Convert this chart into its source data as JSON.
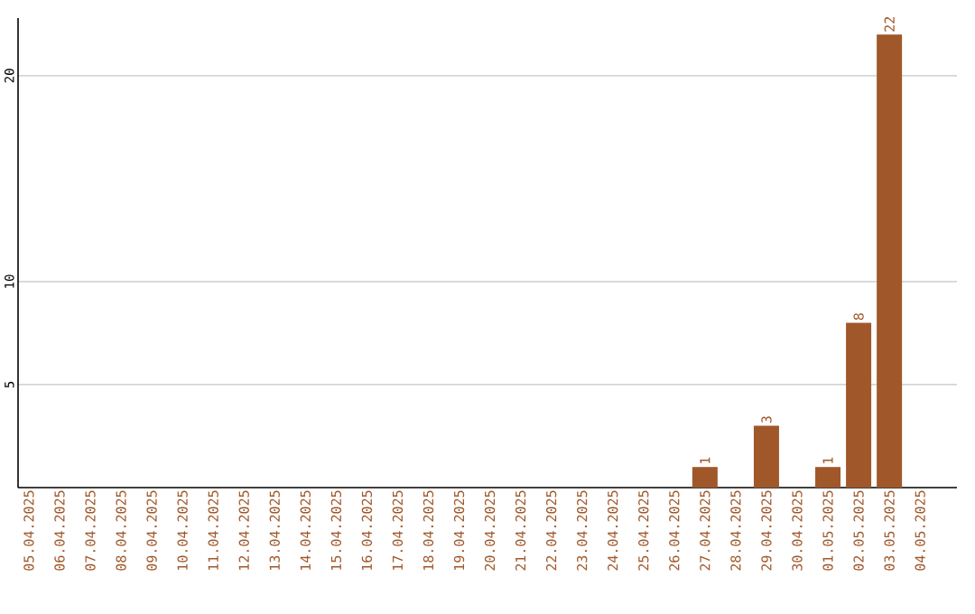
{
  "chart_data": {
    "type": "bar",
    "categories": [
      "05.04.2025",
      "06.04.2025",
      "07.04.2025",
      "08.04.2025",
      "09.04.2025",
      "10.04.2025",
      "11.04.2025",
      "12.04.2025",
      "13.04.2025",
      "14.04.2025",
      "15.04.2025",
      "16.04.2025",
      "17.04.2025",
      "18.04.2025",
      "19.04.2025",
      "20.04.2025",
      "21.04.2025",
      "22.04.2025",
      "23.04.2025",
      "24.04.2025",
      "25.04.2025",
      "26.04.2025",
      "27.04.2025",
      "28.04.2025",
      "29.04.2025",
      "30.04.2025",
      "01.05.2025",
      "02.05.2025",
      "03.05.2025",
      "04.05.2025"
    ],
    "values": [
      0,
      0,
      0,
      0,
      0,
      0,
      0,
      0,
      0,
      0,
      0,
      0,
      0,
      0,
      0,
      0,
      0,
      0,
      0,
      0,
      0,
      0,
      1,
      0,
      3,
      0,
      1,
      8,
      22,
      0
    ],
    "value_labels": [
      null,
      null,
      null,
      null,
      null,
      null,
      null,
      null,
      null,
      null,
      null,
      null,
      null,
      null,
      null,
      null,
      null,
      null,
      null,
      null,
      null,
      null,
      "1",
      null,
      "3",
      null,
      "1",
      "8",
      "22",
      null
    ],
    "color": "#a0582a",
    "ylim": [
      0,
      22.8
    ],
    "yticks": [
      5,
      10,
      20
    ],
    "grid": "y"
  }
}
